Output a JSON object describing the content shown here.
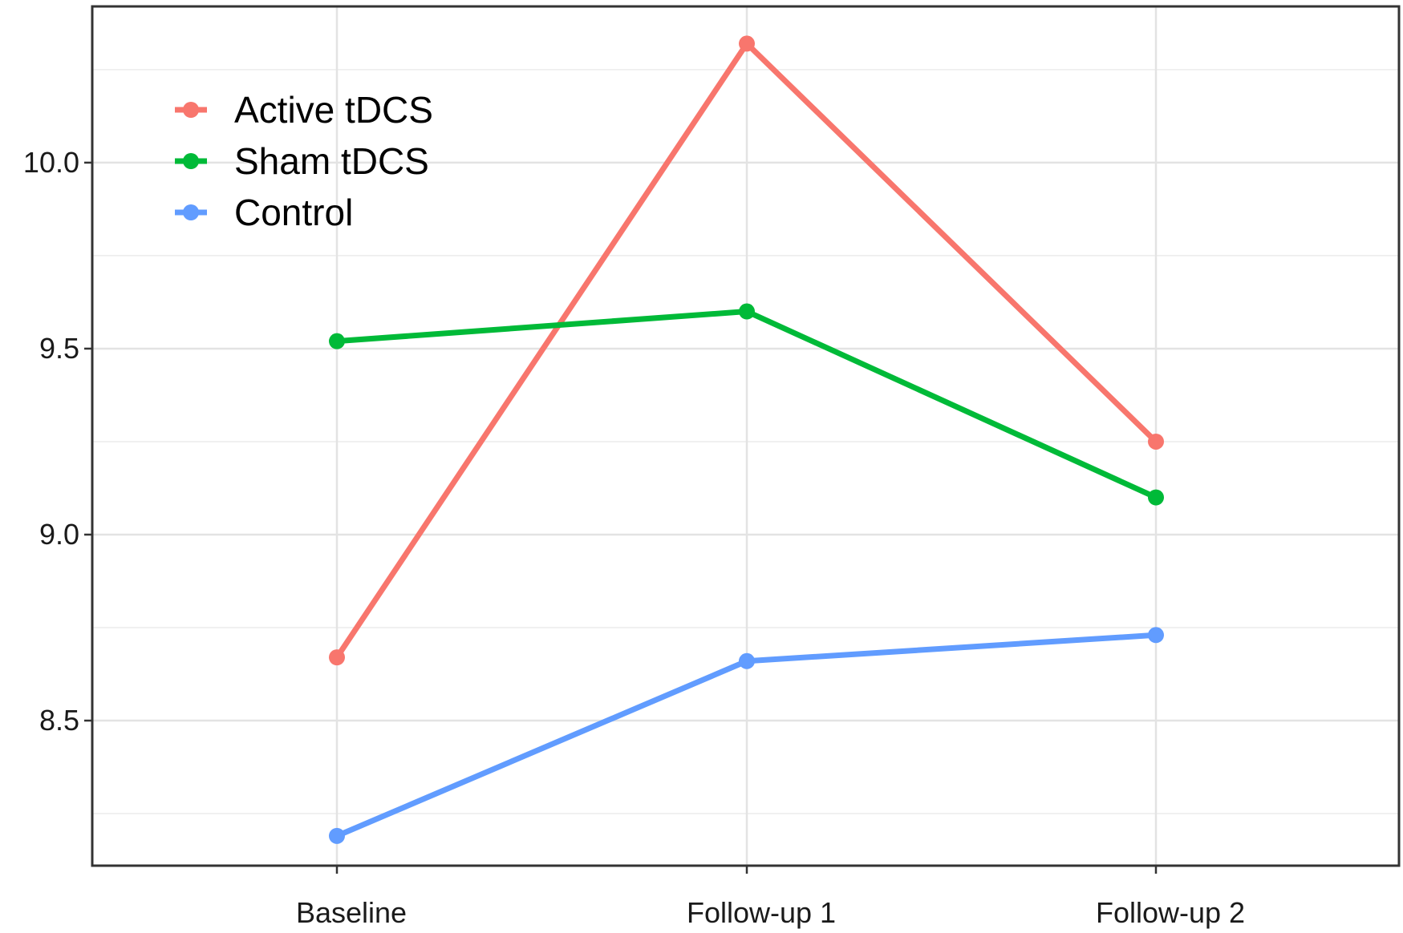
{
  "chart_data": {
    "type": "line",
    "title": "",
    "xlabel": "",
    "ylabel": "",
    "categories": [
      "Baseline",
      "Follow-up 1",
      "Follow-up 2"
    ],
    "ylim": [
      8.11,
      10.42
    ],
    "yticks": [
      8.5,
      9.0,
      9.5,
      10.0
    ],
    "ytick_labels": [
      "8.5",
      "9.0",
      "9.5",
      "10.0"
    ],
    "grid": true,
    "legend_position": "top-left",
    "series": [
      {
        "name": "Active tDCS",
        "color": "#F8766D",
        "values": [
          8.67,
          10.32,
          9.25
        ]
      },
      {
        "name": "Sham tDCS",
        "color": "#00BA38",
        "values": [
          9.52,
          9.6,
          9.1
        ]
      },
      {
        "name": "Control",
        "color": "#619CFF",
        "values": [
          8.19,
          8.66,
          8.73
        ]
      }
    ]
  }
}
